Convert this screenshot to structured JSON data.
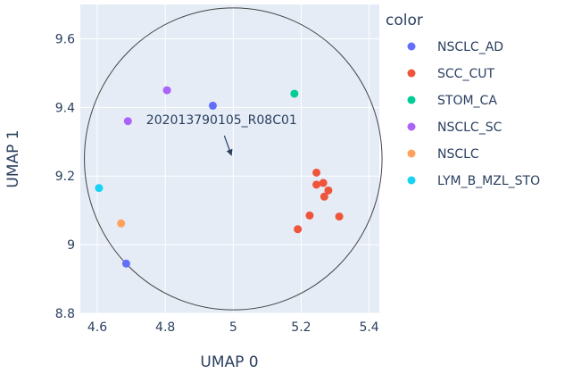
{
  "chart_data": {
    "type": "scatter",
    "xlabel": "UMAP 0",
    "ylabel": "UMAP 1",
    "xlim": [
      4.55,
      5.43
    ],
    "ylim": [
      8.8,
      9.7
    ],
    "xticks": [
      4.6,
      4.8,
      5,
      5.2,
      5.4
    ],
    "xtick_labels": [
      "4.6",
      "4.8",
      "5",
      "5.2",
      "5.4"
    ],
    "yticks": [
      8.8,
      9,
      9.2,
      9.4,
      9.6
    ],
    "ytick_labels": [
      "8.8",
      "9",
      "9.2",
      "9.4",
      "9.6"
    ],
    "grid": true,
    "legend_title": "color",
    "legend_position": "right",
    "series": [
      {
        "name": "NSCLC_AD",
        "color": "#636efa",
        "points": [
          {
            "x": 4.94,
            "y": 9.405
          },
          {
            "x": 4.685,
            "y": 8.945
          }
        ]
      },
      {
        "name": "SCC_CUT",
        "color": "#EF553B",
        "points": [
          {
            "x": 5.245,
            "y": 9.21
          },
          {
            "x": 5.245,
            "y": 9.175
          },
          {
            "x": 5.265,
            "y": 9.18
          },
          {
            "x": 5.28,
            "y": 9.158
          },
          {
            "x": 5.268,
            "y": 9.14
          },
          {
            "x": 5.312,
            "y": 9.082
          },
          {
            "x": 5.225,
            "y": 9.085
          },
          {
            "x": 5.19,
            "y": 9.045
          }
        ]
      },
      {
        "name": "STOM_CA",
        "color": "#00cc96",
        "points": [
          {
            "x": 5.18,
            "y": 9.44
          }
        ]
      },
      {
        "name": "NSCLC_SC",
        "color": "#ab63fa",
        "points": [
          {
            "x": 4.805,
            "y": 9.45
          },
          {
            "x": 4.69,
            "y": 9.36
          }
        ]
      },
      {
        "name": "NSCLC",
        "color": "#FFA15A",
        "points": [
          {
            "x": 4.67,
            "y": 9.062
          }
        ]
      },
      {
        "name": "LYM_B_MZL_STO",
        "color": "#19d3f3",
        "points": [
          {
            "x": 4.605,
            "y": 9.165
          }
        ]
      }
    ],
    "circle": {
      "cx": 5.0,
      "cy": 9.25,
      "rx": 0.438,
      "ry": 0.44
    },
    "annotations": [
      {
        "text": "202013790105_R08C01",
        "point": {
          "x": 5.0,
          "y": 9.25
        }
      }
    ]
  }
}
